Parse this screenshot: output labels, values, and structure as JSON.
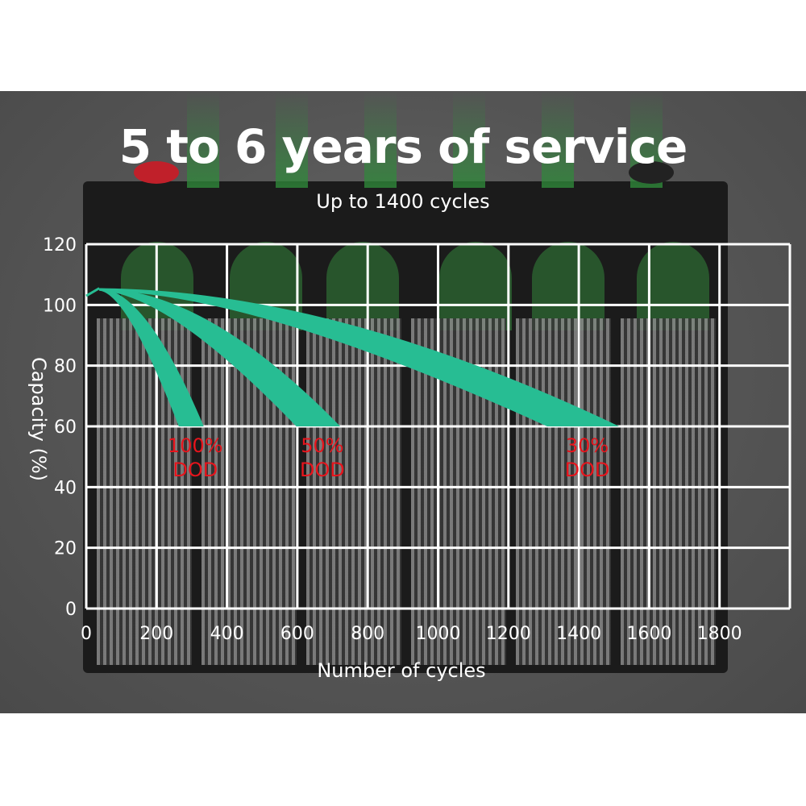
{
  "title": "5 to 6 years of service",
  "subtitle": "Up to 1400 cycles",
  "colors": {
    "band": "#27bd93",
    "grid": "#ffffff",
    "label": "#e8141c",
    "background": "#555555"
  },
  "chart_data": {
    "type": "area",
    "xlabel": "Number of cycles",
    "ylabel": "Capacity (%)",
    "xlim": [
      0,
      2000
    ],
    "ylim": [
      0,
      120
    ],
    "xticks": [
      0,
      200,
      400,
      600,
      800,
      1000,
      1200,
      1400,
      1600,
      1800
    ],
    "yticks": [
      0,
      20,
      40,
      60,
      80,
      100,
      120
    ],
    "grid": true,
    "start": {
      "x": 0,
      "y": 103
    },
    "peak": {
      "x": 37,
      "y": 105.5
    },
    "series": [
      {
        "name": "100%\nDOD",
        "label_lines": [
          "100%",
          "DOD"
        ],
        "end_y": 60,
        "end_x_range": [
          263,
          334
        ]
      },
      {
        "name": "50%\nDOD",
        "label_lines": [
          "50%",
          "DOD"
        ],
        "end_y": 60,
        "end_x_range": [
          597,
          722
        ]
      },
      {
        "name": "30%\nDOD",
        "label_lines": [
          "30%",
          "DOD"
        ],
        "end_y": 60,
        "end_x_range": [
          1310,
          1515
        ]
      }
    ]
  }
}
